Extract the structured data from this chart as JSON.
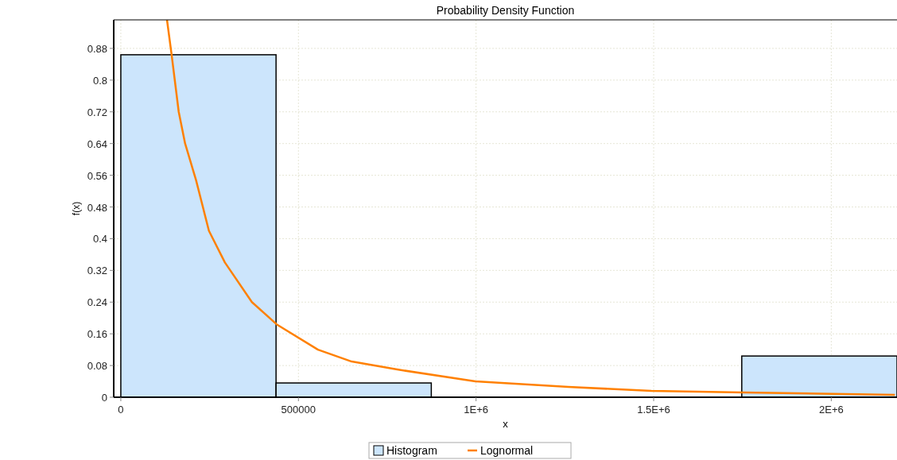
{
  "chart_data": {
    "type": "histogram",
    "title": "Probability Density Function",
    "xlabel": "x",
    "ylabel": "f(x)",
    "bins": [
      0,
      437000,
      874000,
      1311000,
      1748000,
      2185000
    ],
    "series": [
      {
        "name": "Histogram",
        "color": "#cce5fc",
        "values": [
          0.864,
          0.036,
          0,
          0,
          0.104
        ]
      },
      {
        "name": "Lognormal",
        "type": "line",
        "color": "#ff8000",
        "x": [
          130000,
          143000,
          163000,
          181000,
          212000,
          248000,
          293000,
          369000,
          438500,
          555000,
          650000,
          778000,
          998000,
          1260000,
          1494000,
          1752000,
          2179000
        ],
        "values": [
          0.952,
          0.864,
          0.72,
          0.64,
          0.547,
          0.42,
          0.34,
          0.24,
          0.184,
          0.12,
          0.09,
          0.07,
          0.04,
          0.026,
          0.016,
          0.012,
          0.006
        ]
      }
    ],
    "xlim": [
      -20000,
      2185000
    ],
    "xticks": [
      0,
      500000,
      {
        "value": 1000000,
        "label": "1E+6"
      },
      {
        "value": 1500000,
        "label": "1.5E+6"
      },
      {
        "value": 2000000,
        "label": "2E+6"
      }
    ],
    "ylim": [
      0,
      0.952
    ],
    "yticks": [
      0,
      0.08,
      0.16,
      0.24,
      0.32,
      0.4,
      0.48,
      0.56,
      0.64,
      0.72,
      0.8,
      0.88
    ],
    "grid": true,
    "legend": "bottom"
  }
}
